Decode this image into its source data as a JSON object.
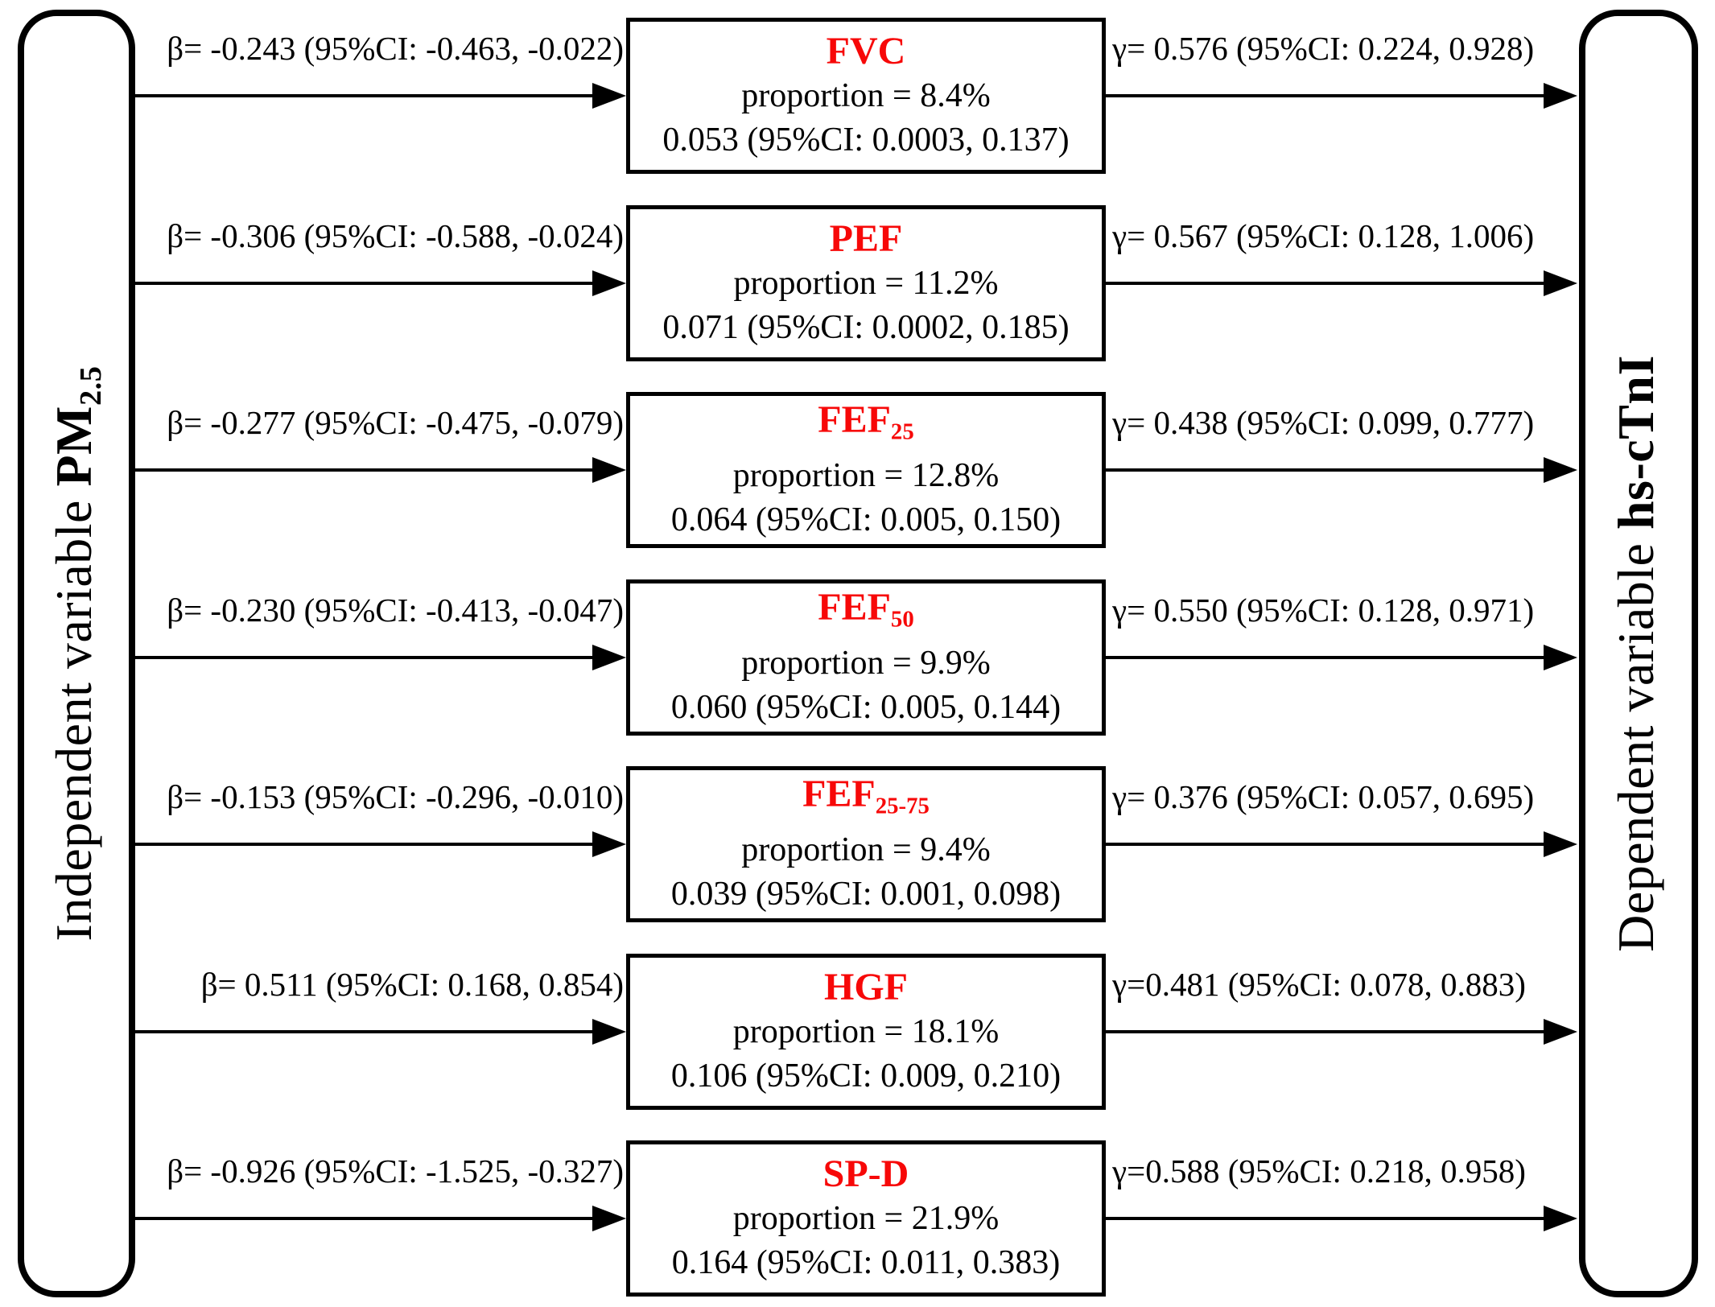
{
  "diagram": {
    "independent": {
      "prefix": "Independent variable",
      "name": "PM",
      "subscript": "2.5"
    },
    "dependent": {
      "prefix": "Dependent variable",
      "name": "hs-cTnI",
      "subscript": ""
    },
    "colors": {
      "mediator_title": "#f70808",
      "text": "#000000",
      "line": "#000000",
      "background": "#ffffff"
    },
    "rows": [
      {
        "beta": "β= -0.243 (95%CI: -0.463, -0.022)",
        "title": "FVC",
        "title_subscript": "",
        "proportion": "proportion = 8.4%",
        "estimate": "0.053 (95%CI: 0.0003, 0.137)",
        "gamma": "γ= 0.576 (95%CI: 0.224, 0.928)"
      },
      {
        "beta": "β= -0.306 (95%CI: -0.588, -0.024)",
        "title": "PEF",
        "title_subscript": "",
        "proportion": "proportion = 11.2%",
        "estimate": "0.071 (95%CI: 0.0002, 0.185)",
        "gamma": "γ= 0.567 (95%CI: 0.128, 1.006)"
      },
      {
        "beta": "β= -0.277 (95%CI: -0.475, -0.079)",
        "title": "FEF",
        "title_subscript": "25",
        "proportion": "proportion = 12.8%",
        "estimate": "0.064 (95%CI: 0.005, 0.150)",
        "gamma": "γ= 0.438 (95%CI: 0.099, 0.777)"
      },
      {
        "beta": "β= -0.230 (95%CI: -0.413, -0.047)",
        "title": "FEF",
        "title_subscript": "50",
        "proportion": "proportion = 9.9%",
        "estimate": "0.060 (95%CI: 0.005, 0.144)",
        "gamma": "γ= 0.550 (95%CI: 0.128, 0.971)"
      },
      {
        "beta": "β= -0.153 (95%CI: -0.296, -0.010)",
        "title": "FEF",
        "title_subscript": "25-75",
        "proportion": "proportion = 9.4%",
        "estimate": "0.039 (95%CI: 0.001, 0.098)",
        "gamma": "γ= 0.376 (95%CI: 0.057, 0.695)"
      },
      {
        "beta": "β= 0.511 (95%CI: 0.168, 0.854)",
        "title": "HGF",
        "title_subscript": "",
        "proportion": "proportion = 18.1%",
        "estimate": "0.106 (95%CI: 0.009, 0.210)",
        "gamma": "γ=0.481 (95%CI: 0.078, 0.883)"
      },
      {
        "beta": "β= -0.926 (95%CI: -1.525, -0.327)",
        "title": "SP-D",
        "title_subscript": "",
        "proportion": "proportion = 21.9%",
        "estimate": "0.164 (95%CI: 0.011, 0.383)",
        "gamma": "γ=0.588 (95%CI: 0.218, 0.958)"
      }
    ]
  }
}
